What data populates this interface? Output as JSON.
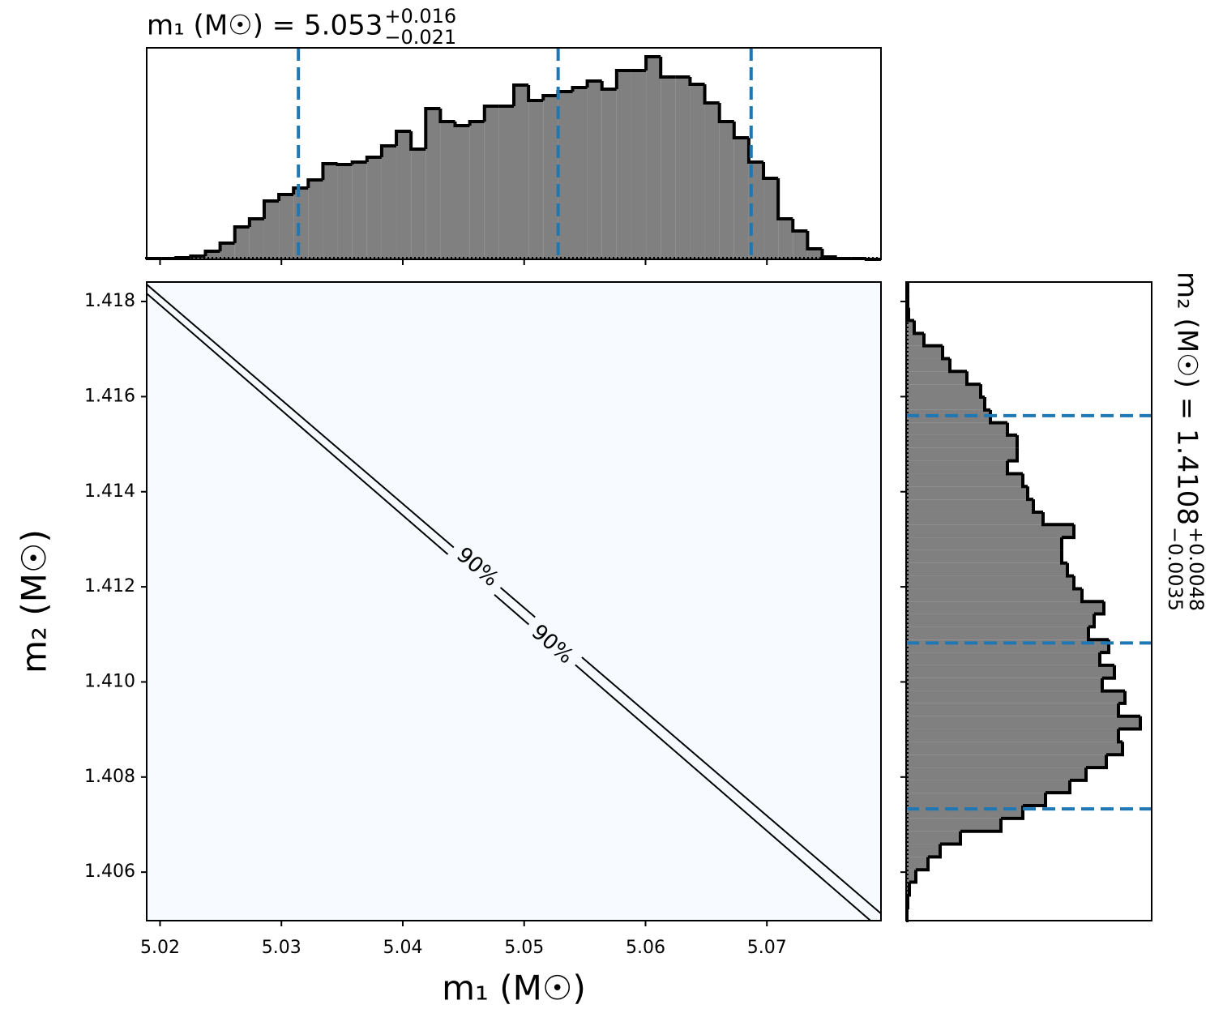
{
  "chart_data": [
    {
      "type": "histogram",
      "orientation": "vertical",
      "title": "m₁ (M☉) = 5.053",
      "title_sup": "+0.016",
      "title_sub": "−0.021",
      "color": "#808080",
      "edge_color": "#000000",
      "quantile_color": "#1f77b4",
      "xlim": [
        5.0189,
        5.0794
      ],
      "ylim": [
        0,
        261
      ],
      "bins": [
        5.0189,
        5.02011,
        5.02132,
        5.02253,
        5.02374,
        5.02495,
        5.02616,
        5.02737,
        5.02858,
        5.02979,
        5.031,
        5.03221,
        5.03342,
        5.03463,
        5.03584,
        5.03705,
        5.03826,
        5.03947,
        5.04068,
        5.04189,
        5.0431,
        5.04431,
        5.04552,
        5.04673,
        5.04794,
        5.04915,
        5.05036,
        5.05157,
        5.05278,
        5.05399,
        5.0552,
        5.05641,
        5.05762,
        5.05883,
        5.06004,
        5.06125,
        5.06246,
        5.06367,
        5.06488,
        5.06609,
        5.0673,
        5.06851,
        5.06972,
        5.07093,
        5.07214,
        5.07335,
        5.07456,
        5.07577,
        5.07698,
        5.07819,
        5.0794
      ],
      "values": [
        1,
        1,
        2,
        4,
        10,
        20,
        40,
        50,
        72,
        80,
        88,
        98,
        118,
        117,
        120,
        126,
        140,
        158,
        136,
        186,
        170,
        165,
        170,
        189,
        189,
        215,
        196,
        202,
        207,
        212,
        220,
        210,
        233,
        233,
        250,
        225,
        225,
        216,
        193,
        170,
        150,
        120,
        100,
        50,
        35,
        13,
        3,
        1,
        1,
        0
      ],
      "quantiles": [
        5.0314,
        5.0528,
        5.0687
      ]
    },
    {
      "type": "contour",
      "xlabel": "m₁ (M☉)",
      "ylabel": "m₂ (M☉)",
      "xlim": [
        5.0189,
        5.0794
      ],
      "ylim": [
        1.40498,
        1.41841
      ],
      "xticks": [
        5.02,
        5.03,
        5.04,
        5.05,
        5.06,
        5.07
      ],
      "yticks": [
        1.406,
        1.408,
        {
          "value": 1.41,
          "label": "1.410"
        },
        1.412,
        1.414,
        1.416,
        1.418
      ],
      "background": "#f7fbff",
      "color": "#000000",
      "contours": [
        {
          "x": [
            5.0189,
            5.0794
          ],
          "y": [
            1.41836,
            1.40513
          ]
        },
        {
          "x": [
            5.0189,
            5.07854
          ],
          "y": [
            1.41817,
            1.40498
          ]
        }
      ],
      "contour_labels": [
        "90%",
        "90%"
      ]
    },
    {
      "type": "histogram",
      "orientation": "horizontal",
      "title": "m₂ (M☉) = 1.4108",
      "title_sup": "+0.0048",
      "title_sub": "−0.0035",
      "color": "#808080",
      "edge_color": "#000000",
      "quantile_color": "#1f77b4",
      "xlim": [
        0,
        303
      ],
      "ylim": [
        1.40498,
        1.41841
      ],
      "bins": [
        1.40498,
        1.40525,
        1.40552,
        1.40579,
        1.40605,
        1.40632,
        1.40659,
        1.40686,
        1.40713,
        1.4074,
        1.40767,
        1.40793,
        1.4082,
        1.40847,
        1.40874,
        1.40901,
        1.40928,
        1.40955,
        1.40981,
        1.41008,
        1.41035,
        1.41062,
        1.41089,
        1.41116,
        1.41143,
        1.41169,
        1.41196,
        1.41223,
        1.4125,
        1.41277,
        1.41304,
        1.41331,
        1.41357,
        1.41384,
        1.41411,
        1.41438,
        1.41465,
        1.41492,
        1.41519,
        1.41545,
        1.41572,
        1.41599,
        1.41626,
        1.41653,
        1.4168,
        1.41707,
        1.41733,
        1.4176,
        1.41787,
        1.41814,
        1.41841
      ],
      "values": [
        1,
        2,
        4,
        12,
        27,
        42,
        67,
        117,
        144,
        172,
        202,
        222,
        247,
        267,
        262,
        289,
        262,
        270,
        242,
        257,
        239,
        250,
        225,
        232,
        244,
        217,
        207,
        199,
        192,
        192,
        207,
        169,
        157,
        150,
        144,
        125,
        137,
        137,
        125,
        104,
        97,
        92,
        75,
        54,
        45,
        22,
        10,
        3,
        2,
        2
      ],
      "quantiles": [
        1.4156,
        1.41082,
        1.40733
      ]
    }
  ]
}
